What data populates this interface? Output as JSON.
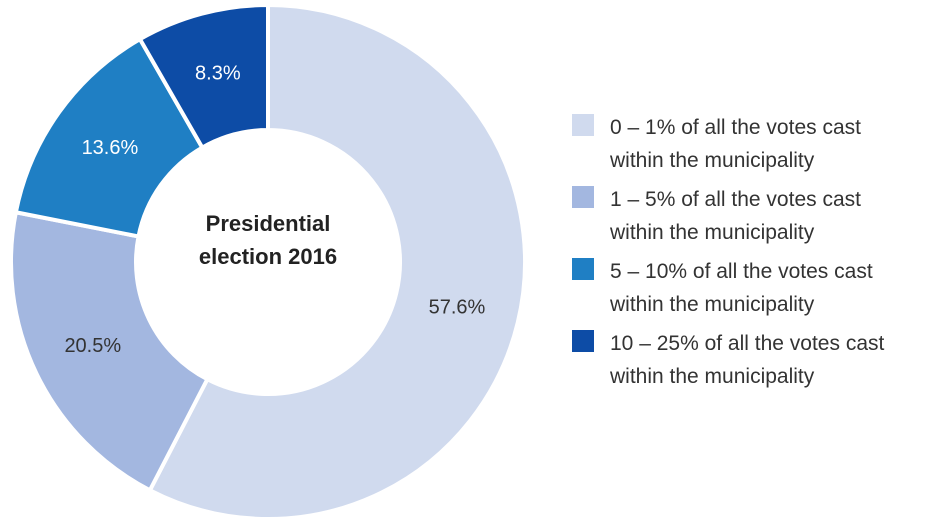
{
  "chart_data": {
    "type": "pie",
    "donut": true,
    "center_title_line1": "Presidential",
    "center_title_line2": "election 2016",
    "slices": [
      {
        "label_line1": "0 – 1% of all the votes cast",
        "label_line2": "within the municipality",
        "value": 57.6,
        "value_label": "57.6%",
        "color": "#d0daee",
        "text_color": "#333333"
      },
      {
        "label_line1": "1 – 5% of all the votes cast",
        "label_line2": "within the municipality",
        "value": 20.5,
        "value_label": "20.5%",
        "color": "#a3b7e0",
        "text_color": "#333333"
      },
      {
        "label_line1": "5 – 10% of all the votes cast",
        "label_line2": "within the municipality",
        "value": 13.6,
        "value_label": "13.6%",
        "color": "#1f7fc4",
        "text_color": "#ffffff"
      },
      {
        "label_line1": "10 – 25% of all the votes cast",
        "label_line2": "within the municipality",
        "value": 8.3,
        "value_label": "8.3%",
        "color": "#0d4ca6",
        "text_color": "#ffffff"
      }
    ],
    "legend_position": "right"
  }
}
